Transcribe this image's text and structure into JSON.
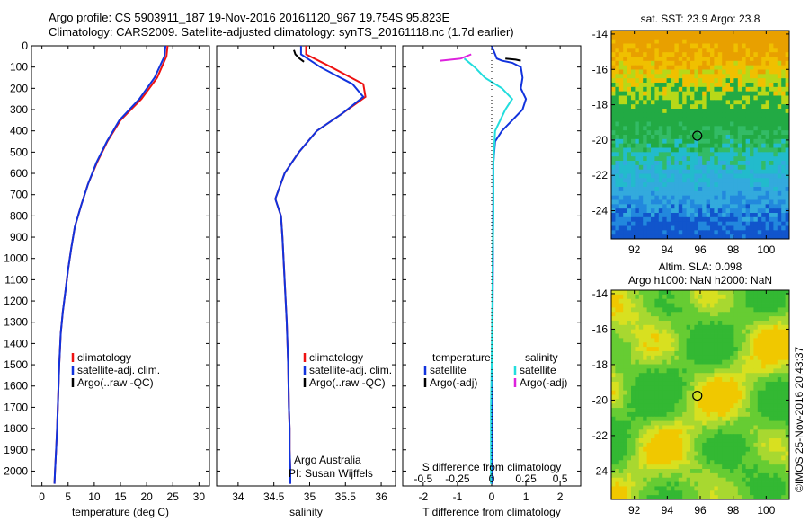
{
  "header": {
    "line1": "Argo profile: CS 5903911_187 19-Nov-2016 20161120_967 19.754S 95.823E",
    "line2": "Climatology: CARS2009. Satellite-adjusted climatology: synTS_20161118.nc (1.7d earlier)"
  },
  "colors": {
    "climatology": "#ee1111",
    "satellite": "#1133dd",
    "argo": "#000000",
    "sal_satellite": "#22dddd",
    "sal_argo": "#dd22dd"
  },
  "chart_data": [
    {
      "type": "line",
      "panel": "temperature",
      "xlabel": "temperature (deg C)",
      "ylabel": "",
      "xlim": [
        -2,
        32
      ],
      "ylim": [
        2070,
        0
      ],
      "xticks": [
        0,
        5,
        10,
        15,
        20,
        25,
        30
      ],
      "yticks": [
        0,
        100,
        200,
        300,
        400,
        500,
        600,
        700,
        800,
        900,
        1000,
        1100,
        1200,
        1300,
        1400,
        1500,
        1600,
        1700,
        1800,
        1900,
        2000
      ],
      "legend": [
        "climatology",
        "satellite-adj. clim.",
        "Argo(..raw -QC)"
      ],
      "series": [
        {
          "name": "climatology",
          "color": "#ee1111",
          "x": [
            24.0,
            23.8,
            22.0,
            19.0,
            15.0,
            12.5,
            10.5,
            8.8,
            7.5,
            6.3,
            5.6,
            5.0,
            4.5,
            4.0,
            3.6,
            3.3,
            3.1,
            2.9,
            2.7,
            2.5,
            2.4
          ],
          "y": [
            0,
            50,
            150,
            250,
            350,
            450,
            550,
            650,
            750,
            850,
            950,
            1050,
            1150,
            1250,
            1350,
            1500,
            1650,
            1800,
            1900,
            2000,
            2060
          ]
        },
        {
          "name": "satellite-adj. clim.",
          "color": "#1133dd",
          "x": [
            23.6,
            23.4,
            21.5,
            18.6,
            14.8,
            12.4,
            10.4,
            8.8,
            7.5,
            6.3,
            5.6,
            5.0,
            4.5,
            4.0,
            3.6,
            3.3,
            3.1,
            2.9,
            2.7,
            2.5,
            2.4
          ],
          "y": [
            0,
            50,
            150,
            250,
            350,
            450,
            550,
            650,
            750,
            850,
            950,
            1050,
            1150,
            1250,
            1350,
            1500,
            1650,
            1800,
            1900,
            2000,
            2060
          ]
        }
      ]
    },
    {
      "type": "line",
      "panel": "salinity",
      "xlabel": "salinity",
      "ylabel": "",
      "xlim": [
        33.7,
        36.2
      ],
      "ylim": [
        2070,
        0
      ],
      "xticks": [
        34,
        34.5,
        35,
        35.5,
        36
      ],
      "legend": [
        "climatology",
        "satellite-adj. clim.",
        "Argo(..raw -QC)"
      ],
      "annotations": [
        "Argo Australia",
        "PI: Susan Wijffels"
      ],
      "series": [
        {
          "name": "climatology",
          "color": "#ee1111",
          "x": [
            34.95,
            34.95,
            35.3,
            35.75,
            35.78,
            35.45,
            35.1,
            34.85,
            34.65,
            34.52,
            34.6,
            34.62,
            34.65,
            34.68,
            34.7,
            34.71,
            34.72,
            34.72,
            34.73,
            34.73
          ],
          "y": [
            0,
            40,
            100,
            180,
            240,
            320,
            400,
            500,
            600,
            720,
            800,
            900,
            1100,
            1300,
            1500,
            1700,
            1800,
            1900,
            2000,
            2060
          ]
        },
        {
          "name": "satellite-adj. clim.",
          "color": "#1133dd",
          "x": [
            34.88,
            34.88,
            35.15,
            35.6,
            35.75,
            35.45,
            35.1,
            34.85,
            34.65,
            34.52,
            34.6,
            34.62,
            34.65,
            34.68,
            34.7,
            34.71,
            34.72,
            34.72,
            34.73,
            34.73
          ],
          "y": [
            0,
            40,
            100,
            180,
            240,
            320,
            400,
            500,
            600,
            720,
            800,
            900,
            1100,
            1300,
            1500,
            1700,
            1800,
            1900,
            2000,
            2060
          ]
        },
        {
          "name": "Argo(..raw -QC)",
          "color": "#000000",
          "x": [
            34.78,
            34.8,
            34.86,
            34.92
          ],
          "y": [
            20,
            40,
            60,
            75
          ]
        }
      ]
    },
    {
      "type": "line",
      "panel": "difference",
      "xlabel": "T difference from climatology",
      "xlabel2": "S difference from climatology",
      "xlim": [
        -2.6,
        2.6
      ],
      "ylim": [
        2070,
        0
      ],
      "xticks": [
        -2,
        -1,
        0,
        1,
        2
      ],
      "xticks_S": [
        -0.5,
        -0.25,
        0,
        0.25,
        0.5
      ],
      "legend_titles": [
        "temperature",
        "salinity"
      ],
      "legend": [
        "satellite",
        "Argo(-adj)",
        "satellite",
        "Argo(-adj)"
      ],
      "series": [
        {
          "name": "satellite",
          "group": "temperature",
          "color": "#1133dd",
          "x": [
            0.0,
            0.15,
            0.3,
            0.6,
            0.85,
            0.9,
            0.85,
            1.0,
            0.9,
            0.6,
            0.3,
            0.1,
            0.05,
            0.05,
            0.04,
            0.03,
            0.02,
            0.02,
            0.02,
            0.02
          ],
          "y": [
            0,
            60,
            70,
            80,
            100,
            150,
            200,
            250,
            300,
            350,
            400,
            450,
            550,
            700,
            900,
            1200,
            1500,
            1800,
            2000,
            2060
          ]
        },
        {
          "name": "Argo(-adj)",
          "group": "temperature",
          "color": "#000000",
          "x": [
            0.4,
            0.7,
            0.85
          ],
          "y": [
            60,
            65,
            70
          ]
        },
        {
          "name": "satellite",
          "group": "salinity",
          "color": "#22dddd",
          "x": [
            -0.8,
            -0.5,
            -0.2,
            0.3,
            0.6,
            0.4,
            0.1,
            0.05,
            0.05,
            0.03,
            0.02,
            0.0,
            -0.02,
            -0.02,
            -0.02,
            -0.02
          ],
          "y": [
            60,
            100,
            150,
            200,
            250,
            300,
            400,
            550,
            800,
            1000,
            1200,
            1500,
            1700,
            1900,
            2000,
            2060
          ]
        },
        {
          "name": "Argo(-adj)",
          "group": "salinity",
          "color": "#dd22dd",
          "x": [
            -1.5,
            -0.9,
            -0.6
          ],
          "y": [
            70,
            60,
            40
          ]
        }
      ]
    },
    {
      "type": "heatmap",
      "panel": "sst-map",
      "title": "sat. SST: 23.9 Argo: 23.8",
      "xlim": [
        90.6,
        101.4
      ],
      "ylim": [
        -25.6,
        -13.8
      ],
      "xticks": [
        92,
        94,
        96,
        98,
        100
      ],
      "yticks": [
        -14,
        -16,
        -18,
        -20,
        -22,
        -24
      ],
      "marker": {
        "lon": 95.823,
        "lat": -19.754
      }
    },
    {
      "type": "heatmap",
      "panel": "sla-map",
      "title": "Altim. SLA: 0.098",
      "subtitle": "Argo h1000: NaN h2000: NaN",
      "xlim": [
        90.6,
        101.4
      ],
      "ylim": [
        -25.6,
        -13.8
      ],
      "xticks": [
        92,
        94,
        96,
        98,
        100
      ],
      "yticks": [
        -14,
        -16,
        -18,
        -20,
        -22,
        -24
      ],
      "marker": {
        "lon": 95.823,
        "lat": -19.754
      }
    }
  ],
  "footer": {
    "credit": "©IMOS 25-Nov-2016 20:43:37"
  }
}
